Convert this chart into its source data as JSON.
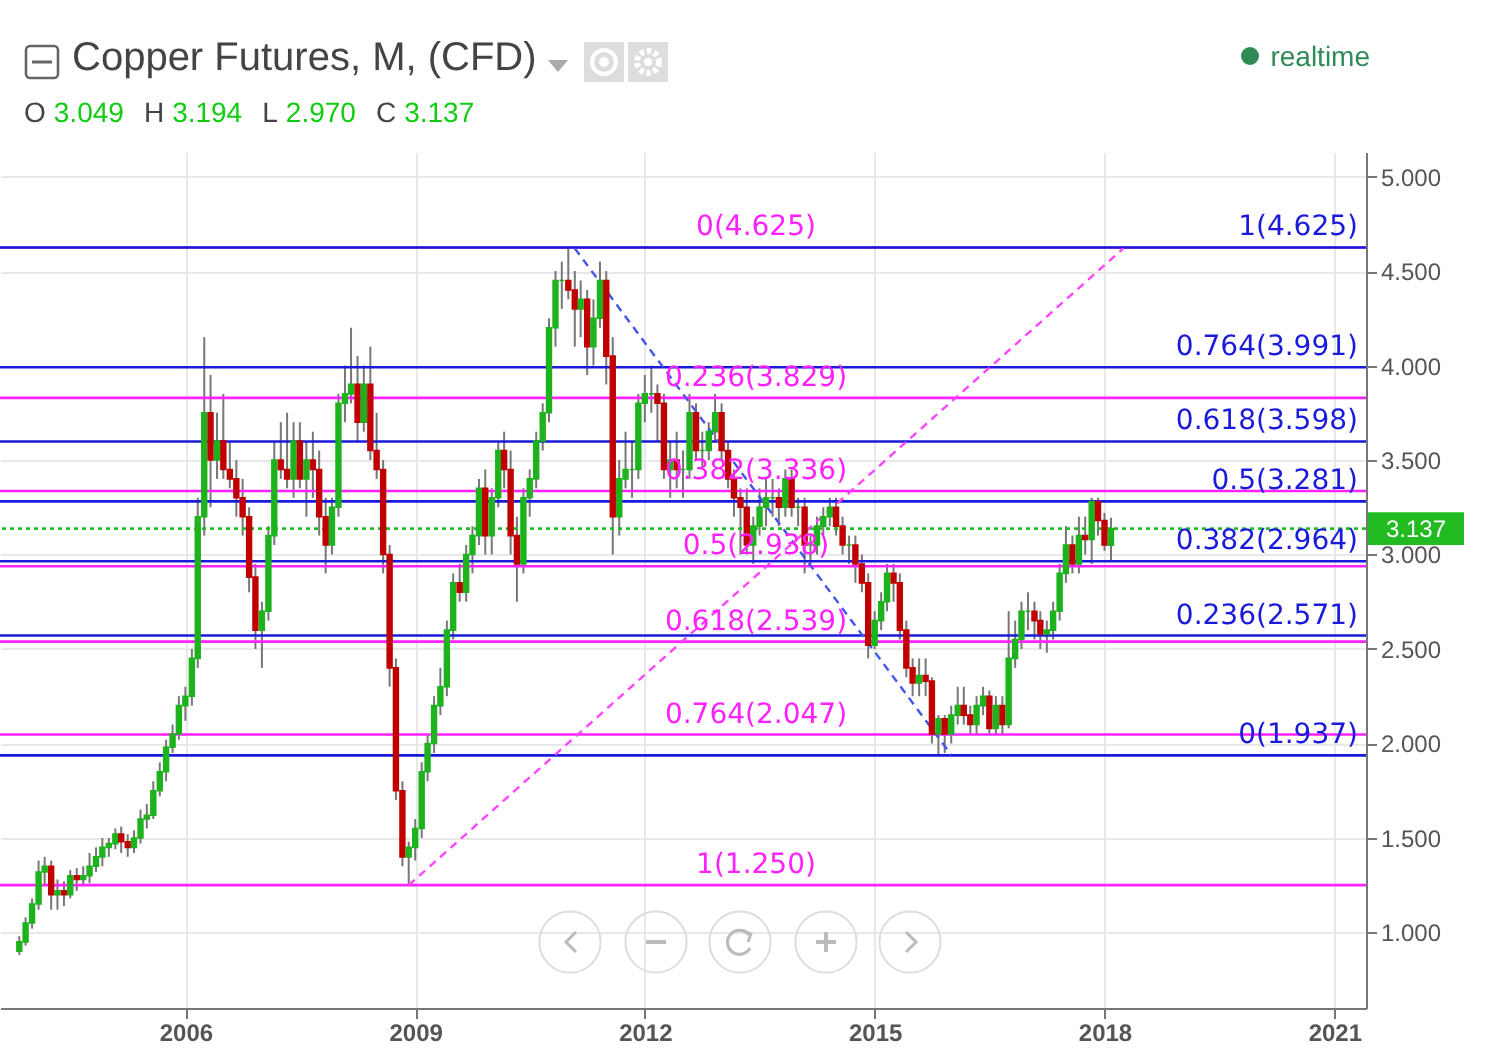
{
  "chart_data": {
    "type": "candlestick",
    "title": "Copper Futures, M, (CFD)",
    "annotations": [
      "O 3.049",
      "H 3.194",
      "L 2.970",
      "C 3.137",
      "realtime"
    ],
    "colors": [
      "#1db31d",
      "#1db31d",
      "#1db31d",
      "#1db31d",
      "#1db31d",
      "#c00000",
      "#1db31d",
      "#c00000",
      "#1db31d",
      "#c00000",
      "#1db31d",
      "#1db31d",
      "#1db31d",
      "#1db31d",
      "#1db31d",
      "#1db31d",
      "#c00000",
      "#c00000",
      "#1db31d",
      "#1db31d",
      "#1db31d",
      "#1db31d",
      "#1db31d",
      "#1db31d",
      "#1db31d",
      "#1db31d",
      "#1db31d",
      "#1db31d",
      "#1db31d",
      "#1db31d",
      "#c00000",
      "#1db31d",
      "#c00000",
      "#c00000",
      "#c00000",
      "#c00000",
      "#c00000",
      "#c00000",
      "#1db31d",
      "#1db31d",
      "#1db31d",
      "#c00000",
      "#c00000",
      "#1db31d",
      "#c00000",
      "#1db31d",
      "#c00000",
      "#c00000",
      "#c00000",
      "#1db31d",
      "#1db31d",
      "#1db31d",
      "#1db31d",
      "#c00000",
      "#1db31d",
      "#c00000",
      "#c00000",
      "#c00000",
      "#c00000",
      "#c00000",
      "#c00000",
      "#1db31d",
      "#1db31d",
      "#1db31d",
      "#1db31d",
      "#1db31d",
      "#1db31d",
      "#1db31d",
      "#1db31d",
      "#c00000",
      "#1db31d",
      "#1db31d",
      "#1db31d",
      "#c00000",
      "#1db31d",
      "#1db31d",
      "#c00000",
      "#c00000",
      "#c00000",
      "#1db31d",
      "#1db31d",
      "#1db31d",
      "#1db31d",
      "#1db31d",
      "#1db31d",
      "#1db31d",
      "#c00000",
      "#c00000",
      "#1db31d",
      "#c00000",
      "#1db31d",
      "#1db31d",
      "#c00000",
      "#c00000",
      "#1db31d",
      "#1db31d",
      "#1db31d",
      "#1db31d",
      "#1db31d",
      "#1db31d",
      "#c00000",
      "#c00000",
      "#1db31d",
      "#c00000",
      "#1db31d",
      "#1db31d",
      "#c00000",
      "#1db31d",
      "#1db31d",
      "#1db31d",
      "#c00000",
      "#c00000",
      "#c00000",
      "#c00000",
      "#c00000",
      "#1db31d",
      "#1db31d",
      "#1db31d",
      "#1db31d",
      "#c00000",
      "#1db31d",
      "#c00000",
      "#1db31d",
      "#c00000",
      "#1db31d",
      "#1db31d",
      "#1db31d",
      "#1db31d",
      "#c00000",
      "#c00000",
      "#1db31d",
      "#c00000",
      "#c00000",
      "#c00000",
      "#1db31d",
      "#1db31d",
      "#1db31d",
      "#c00000",
      "#c00000",
      "#c00000",
      "#c00000",
      "#1db31d",
      "#c00000",
      "#c00000",
      "#1db31d",
      "#c00000",
      "#1db31d",
      "#1db31d",
      "#c00000",
      "#c00000",
      "#1db31d",
      "#1db31d",
      "#c00000",
      "#1db31d",
      "#c00000",
      "#1db31d",
      "#1db31d",
      "#1db31d",
      "#1db31d",
      "#c00000",
      "#c00000",
      "#1db31d",
      "#1db31d",
      "#1db31d",
      "#1db31d",
      "#c00000",
      "#1db31d",
      "#c00000",
      "#1db31d",
      "#c00000",
      "#c00000",
      "#1db31d"
    ],
    "grid": true,
    "xlim": [
      "2003-08",
      "2021-06"
    ],
    "xticks": [
      "2006",
      "2009",
      "2012",
      "2015",
      "2018",
      "2021"
    ],
    "ylim": [
      0.6,
      5.13
    ],
    "yticks": [
      {
        "value": 1,
        "label": "1.000"
      },
      {
        "value": 1.5,
        "label": "1.500"
      },
      {
        "value": 2,
        "label": "2.000"
      },
      {
        "value": 2.5,
        "label": "2.500"
      },
      {
        "value": 3,
        "label": "3.000"
      },
      {
        "value": 3.5,
        "label": "3.500"
      },
      {
        "value": 4,
        "label": "4.000"
      },
      {
        "value": 4.5,
        "label": "4.500"
      },
      {
        "value": 5,
        "label": "5.000"
      }
    ],
    "x": [
      "2003-11",
      "2003-12",
      "2004-01",
      "2004-02",
      "2004-03",
      "2004-04",
      "2004-05",
      "2004-06",
      "2004-07",
      "2004-08",
      "2004-09",
      "2004-10",
      "2004-11",
      "2004-12",
      "2005-01",
      "2005-02",
      "2005-03",
      "2005-04",
      "2005-05",
      "2005-06",
      "2005-07",
      "2005-08",
      "2005-09",
      "2005-10",
      "2005-11",
      "2005-12",
      "2006-01",
      "2006-02",
      "2006-03",
      "2006-04",
      "2006-05",
      "2006-06",
      "2006-07",
      "2006-08",
      "2006-09",
      "2006-10",
      "2006-11",
      "2006-12",
      "2007-01",
      "2007-02",
      "2007-03",
      "2007-04",
      "2007-05",
      "2007-06",
      "2007-07",
      "2007-08",
      "2007-09",
      "2007-10",
      "2007-11",
      "2007-12",
      "2008-01",
      "2008-02",
      "2008-03",
      "2008-04",
      "2008-05",
      "2008-06",
      "2008-07",
      "2008-08",
      "2008-09",
      "2008-10",
      "2008-11",
      "2008-12",
      "2009-01",
      "2009-02",
      "2009-03",
      "2009-04",
      "2009-05",
      "2009-06",
      "2009-07",
      "2009-08",
      "2009-09",
      "2009-10",
      "2009-11",
      "2009-12",
      "2010-01",
      "2010-02",
      "2010-03",
      "2010-04",
      "2010-05",
      "2010-06",
      "2010-07",
      "2010-08",
      "2010-09",
      "2010-10",
      "2010-11",
      "2010-12",
      "2011-01",
      "2011-02",
      "2011-03",
      "2011-04",
      "2011-05",
      "2011-06",
      "2011-07",
      "2011-08",
      "2011-09",
      "2011-10",
      "2011-11",
      "2011-12",
      "2012-01",
      "2012-02",
      "2012-03",
      "2012-04",
      "2012-05",
      "2012-06",
      "2012-07",
      "2012-08",
      "2012-09",
      "2012-10",
      "2012-11",
      "2012-12",
      "2013-01",
      "2013-02",
      "2013-03",
      "2013-04",
      "2013-05",
      "2013-06",
      "2013-07",
      "2013-08",
      "2013-09",
      "2013-10",
      "2013-11",
      "2013-12",
      "2014-01",
      "2014-02",
      "2014-03",
      "2014-04",
      "2014-05",
      "2014-06",
      "2014-07",
      "2014-08",
      "2014-09",
      "2014-10",
      "2014-11",
      "2014-12",
      "2015-01",
      "2015-02",
      "2015-03",
      "2015-04",
      "2015-05",
      "2015-06",
      "2015-07",
      "2015-08",
      "2015-09",
      "2015-10",
      "2015-11",
      "2015-12",
      "2016-01",
      "2016-02",
      "2016-03",
      "2016-04",
      "2016-05",
      "2016-06",
      "2016-07",
      "2016-08",
      "2016-09",
      "2016-10",
      "2016-11",
      "2016-12",
      "2017-01",
      "2017-02",
      "2017-03",
      "2017-04",
      "2017-05",
      "2017-06",
      "2017-07",
      "2017-08",
      "2017-09",
      "2017-10",
      "2017-11",
      "2017-12",
      "2018-01",
      "2018-02"
    ],
    "ohlc": [
      [
        0.9,
        0.98,
        0.88,
        0.95
      ],
      [
        0.95,
        1.08,
        0.93,
        1.05
      ],
      [
        1.05,
        1.18,
        1.02,
        1.15
      ],
      [
        1.15,
        1.38,
        1.12,
        1.32
      ],
      [
        1.32,
        1.4,
        1.25,
        1.35
      ],
      [
        1.35,
        1.38,
        1.12,
        1.2
      ],
      [
        1.2,
        1.28,
        1.12,
        1.22
      ],
      [
        1.22,
        1.27,
        1.14,
        1.2
      ],
      [
        1.2,
        1.33,
        1.18,
        1.3
      ],
      [
        1.3,
        1.34,
        1.22,
        1.28
      ],
      [
        1.28,
        1.35,
        1.25,
        1.3
      ],
      [
        1.3,
        1.42,
        1.26,
        1.35
      ],
      [
        1.35,
        1.45,
        1.32,
        1.4
      ],
      [
        1.4,
        1.5,
        1.35,
        1.45
      ],
      [
        1.45,
        1.5,
        1.4,
        1.47
      ],
      [
        1.47,
        1.55,
        1.44,
        1.52
      ],
      [
        1.52,
        1.56,
        1.42,
        1.48
      ],
      [
        1.48,
        1.52,
        1.4,
        1.45
      ],
      [
        1.45,
        1.54,
        1.42,
        1.5
      ],
      [
        1.5,
        1.65,
        1.47,
        1.6
      ],
      [
        1.6,
        1.68,
        1.55,
        1.62
      ],
      [
        1.62,
        1.8,
        1.6,
        1.75
      ],
      [
        1.75,
        1.9,
        1.72,
        1.85
      ],
      [
        1.85,
        2.02,
        1.8,
        1.98
      ],
      [
        1.98,
        2.1,
        1.95,
        2.05
      ],
      [
        2.05,
        2.25,
        2.02,
        2.2
      ],
      [
        2.2,
        2.3,
        2.12,
        2.25
      ],
      [
        2.25,
        2.5,
        2.2,
        2.45
      ],
      [
        2.45,
        3.3,
        2.4,
        3.2
      ],
      [
        3.2,
        4.15,
        3.1,
        3.75
      ],
      [
        3.75,
        3.95,
        3.25,
        3.5
      ],
      [
        3.5,
        3.75,
        3.4,
        3.6
      ],
      [
        3.6,
        3.85,
        3.4,
        3.45
      ],
      [
        3.45,
        3.6,
        3.35,
        3.4
      ],
      [
        3.4,
        3.5,
        3.2,
        3.3
      ],
      [
        3.3,
        3.4,
        3.1,
        3.2
      ],
      [
        3.2,
        3.25,
        2.8,
        2.88
      ],
      [
        2.88,
        2.95,
        2.5,
        2.6
      ],
      [
        2.6,
        2.75,
        2.4,
        2.7
      ],
      [
        2.7,
        3.15,
        2.65,
        3.1
      ],
      [
        3.1,
        3.6,
        3.05,
        3.5
      ],
      [
        3.5,
        3.7,
        3.4,
        3.45
      ],
      [
        3.45,
        3.75,
        3.35,
        3.4
      ],
      [
        3.4,
        3.7,
        3.3,
        3.6
      ],
      [
        3.6,
        3.7,
        3.35,
        3.4
      ],
      [
        3.4,
        3.6,
        3.2,
        3.5
      ],
      [
        3.5,
        3.65,
        3.3,
        3.45
      ],
      [
        3.45,
        3.55,
        3.1,
        3.2
      ],
      [
        3.2,
        3.3,
        2.9,
        3.05
      ],
      [
        3.05,
        3.3,
        3.0,
        3.25
      ],
      [
        3.25,
        3.85,
        3.2,
        3.8
      ],
      [
        3.8,
        4.0,
        3.7,
        3.85
      ],
      [
        3.85,
        4.2,
        3.8,
        3.9
      ],
      [
        3.9,
        4.05,
        3.6,
        3.7
      ],
      [
        3.7,
        4.0,
        3.65,
        3.9
      ],
      [
        3.9,
        4.1,
        3.5,
        3.55
      ],
      [
        3.55,
        3.75,
        3.4,
        3.45
      ],
      [
        3.45,
        3.5,
        2.9,
        3.0
      ],
      [
        3.0,
        3.05,
        2.3,
        2.4
      ],
      [
        2.4,
        2.45,
        1.7,
        1.75
      ],
      [
        1.75,
        1.8,
        1.35,
        1.4
      ],
      [
        1.4,
        1.48,
        1.25,
        1.45
      ],
      [
        1.45,
        1.6,
        1.38,
        1.55
      ],
      [
        1.55,
        1.9,
        1.5,
        1.85
      ],
      [
        1.85,
        2.05,
        1.8,
        2.0
      ],
      [
        2.0,
        2.25,
        1.95,
        2.2
      ],
      [
        2.2,
        2.4,
        2.15,
        2.3
      ],
      [
        2.3,
        2.65,
        2.25,
        2.6
      ],
      [
        2.6,
        2.9,
        2.55,
        2.85
      ],
      [
        2.85,
        2.95,
        2.75,
        2.8
      ],
      [
        2.8,
        3.05,
        2.75,
        3.0
      ],
      [
        3.0,
        3.15,
        2.9,
        3.1
      ],
      [
        3.1,
        3.4,
        3.05,
        3.35
      ],
      [
        3.35,
        3.45,
        3.0,
        3.1
      ],
      [
        3.1,
        3.35,
        3.0,
        3.3
      ],
      [
        3.3,
        3.6,
        3.25,
        3.55
      ],
      [
        3.55,
        3.65,
        3.35,
        3.45
      ],
      [
        3.45,
        3.55,
        3.0,
        3.1
      ],
      [
        3.1,
        3.2,
        2.75,
        2.95
      ],
      [
        2.95,
        3.35,
        2.9,
        3.3
      ],
      [
        3.3,
        3.45,
        3.2,
        3.4
      ],
      [
        3.4,
        3.65,
        3.35,
        3.6
      ],
      [
        3.6,
        3.8,
        3.55,
        3.75
      ],
      [
        3.75,
        4.25,
        3.7,
        4.2
      ],
      [
        4.2,
        4.5,
        4.1,
        4.45
      ],
      [
        4.45,
        4.55,
        4.3,
        4.45
      ],
      [
        4.45,
        4.625,
        4.35,
        4.4
      ],
      [
        4.4,
        4.5,
        4.1,
        4.3
      ],
      [
        4.3,
        4.45,
        4.15,
        4.35
      ],
      [
        4.35,
        4.4,
        3.95,
        4.1
      ],
      [
        4.1,
        4.35,
        4.0,
        4.25
      ],
      [
        4.25,
        4.55,
        4.2,
        4.45
      ],
      [
        4.45,
        4.5,
        3.9,
        4.05
      ],
      [
        4.05,
        4.15,
        3.0,
        3.2
      ],
      [
        3.2,
        3.5,
        3.1,
        3.4
      ],
      [
        3.4,
        3.65,
        3.35,
        3.45
      ],
      [
        3.45,
        3.6,
        3.3,
        3.45
      ],
      [
        3.45,
        3.85,
        3.4,
        3.8
      ],
      [
        3.8,
        3.95,
        3.7,
        3.85
      ],
      [
        3.85,
        4.0,
        3.75,
        3.85
      ],
      [
        3.85,
        3.9,
        3.6,
        3.8
      ],
      [
        3.8,
        3.85,
        3.4,
        3.45
      ],
      [
        3.45,
        3.6,
        3.3,
        3.5
      ],
      [
        3.5,
        3.65,
        3.35,
        3.45
      ],
      [
        3.45,
        3.55,
        3.3,
        3.45
      ],
      [
        3.45,
        3.85,
        3.4,
        3.75
      ],
      [
        3.75,
        3.8,
        3.5,
        3.55
      ],
      [
        3.55,
        3.65,
        3.45,
        3.55
      ],
      [
        3.55,
        3.7,
        3.5,
        3.65
      ],
      [
        3.65,
        3.85,
        3.6,
        3.75
      ],
      [
        3.75,
        3.8,
        3.5,
        3.55
      ],
      [
        3.55,
        3.6,
        3.35,
        3.4
      ],
      [
        3.4,
        3.45,
        3.2,
        3.3
      ],
      [
        3.3,
        3.35,
        3.0,
        3.25
      ],
      [
        3.25,
        3.35,
        3.0,
        3.05
      ],
      [
        3.05,
        3.2,
        2.95,
        3.15
      ],
      [
        3.15,
        3.35,
        3.1,
        3.25
      ],
      [
        3.25,
        3.4,
        3.15,
        3.3
      ],
      [
        3.3,
        3.4,
        3.2,
        3.3
      ],
      [
        3.3,
        3.35,
        3.15,
        3.25
      ],
      [
        3.25,
        3.45,
        3.2,
        3.4
      ],
      [
        3.4,
        3.45,
        3.2,
        3.25
      ],
      [
        3.25,
        3.3,
        3.15,
        3.25
      ],
      [
        3.25,
        3.3,
        2.9,
        3.05
      ],
      [
        3.05,
        3.1,
        2.95,
        3.05
      ],
      [
        3.05,
        3.2,
        3.0,
        3.15
      ],
      [
        3.15,
        3.25,
        3.1,
        3.2
      ],
      [
        3.2,
        3.3,
        3.15,
        3.25
      ],
      [
        3.25,
        3.3,
        3.1,
        3.15
      ],
      [
        3.15,
        3.2,
        3.0,
        3.05
      ],
      [
        3.05,
        3.1,
        2.95,
        3.05
      ],
      [
        3.05,
        3.1,
        2.85,
        2.95
      ],
      [
        2.95,
        3.0,
        2.8,
        2.85
      ],
      [
        2.85,
        2.9,
        2.45,
        2.52
      ],
      [
        2.52,
        2.7,
        2.5,
        2.65
      ],
      [
        2.65,
        2.8,
        2.6,
        2.75
      ],
      [
        2.75,
        2.95,
        2.7,
        2.9
      ],
      [
        2.9,
        2.95,
        2.75,
        2.85
      ],
      [
        2.85,
        2.9,
        2.55,
        2.6
      ],
      [
        2.6,
        2.65,
        2.35,
        2.4
      ],
      [
        2.4,
        2.45,
        2.25,
        2.32
      ],
      [
        2.32,
        2.45,
        2.25,
        2.36
      ],
      [
        2.36,
        2.45,
        2.25,
        2.33
      ],
      [
        2.33,
        2.35,
        2.0,
        2.05
      ],
      [
        2.05,
        2.15,
        1.94,
        2.13
      ],
      [
        2.13,
        2.15,
        1.95,
        2.05
      ],
      [
        2.05,
        2.2,
        2.0,
        2.15
      ],
      [
        2.15,
        2.3,
        2.1,
        2.2
      ],
      [
        2.2,
        2.3,
        2.1,
        2.15
      ],
      [
        2.15,
        2.2,
        2.05,
        2.1
      ],
      [
        2.1,
        2.25,
        2.05,
        2.2
      ],
      [
        2.2,
        2.3,
        2.15,
        2.25
      ],
      [
        2.25,
        2.28,
        2.05,
        2.08
      ],
      [
        2.08,
        2.25,
        2.05,
        2.2
      ],
      [
        2.2,
        2.25,
        2.05,
        2.1
      ],
      [
        2.1,
        2.7,
        2.08,
        2.45
      ],
      [
        2.45,
        2.65,
        2.4,
        2.55
      ],
      [
        2.55,
        2.75,
        2.5,
        2.7
      ],
      [
        2.7,
        2.8,
        2.6,
        2.7
      ],
      [
        2.7,
        2.75,
        2.55,
        2.65
      ],
      [
        2.65,
        2.7,
        2.5,
        2.58
      ],
      [
        2.58,
        2.65,
        2.48,
        2.6
      ],
      [
        2.6,
        2.75,
        2.55,
        2.7
      ],
      [
        2.7,
        2.95,
        2.65,
        2.9
      ],
      [
        2.9,
        3.15,
        2.85,
        3.05
      ],
      [
        3.05,
        3.1,
        2.9,
        2.95
      ],
      [
        2.95,
        3.2,
        2.9,
        3.1
      ],
      [
        3.1,
        3.2,
        3.0,
        3.08
      ],
      [
        3.08,
        3.3,
        2.95,
        3.28
      ],
      [
        3.28,
        3.3,
        3.1,
        3.18
      ],
      [
        3.18,
        3.22,
        3.02,
        3.05
      ],
      [
        3.049,
        3.194,
        2.97,
        3.137
      ]
    ],
    "series": [
      {
        "type": "line",
        "color": "#ff44ff",
        "line_style": "dashed",
        "x": [
          "2008-12",
          "2018-04"
        ],
        "values": [
          1.25,
          4.62
        ]
      },
      {
        "type": "line",
        "color": "#4455ee",
        "line_style": "dashed",
        "x": [
          "2011-02",
          "2016-01"
        ],
        "values": [
          4.62,
          1.94
        ]
      }
    ],
    "ref_lines": [
      {
        "axis": "y",
        "value": 4.625,
        "label": "0(4.625)",
        "color": "#ff22ff"
      },
      {
        "axis": "y",
        "value": 3.829,
        "label": "0.236(3.829)",
        "color": "#ff22ff"
      },
      {
        "axis": "y",
        "value": 3.336,
        "label": "0.382(3.336)",
        "color": "#ff22ff"
      },
      {
        "axis": "y",
        "value": 2.938,
        "label": "0.5(2.938)",
        "color": "#ff22ff"
      },
      {
        "axis": "y",
        "value": 2.539,
        "label": "0.618(2.539)",
        "color": "#ff22ff"
      },
      {
        "axis": "y",
        "value": 2.047,
        "label": "0.764(2.047)",
        "color": "#ff22ff"
      },
      {
        "axis": "y",
        "value": 1.25,
        "label": "1(1.250)",
        "color": "#ff22ff"
      },
      {
        "axis": "y",
        "value": 4.625,
        "label": "1(4.625)",
        "color": "#1a1add"
      },
      {
        "axis": "y",
        "value": 3.991,
        "label": "0.764(3.991)",
        "color": "#1a1add"
      },
      {
        "axis": "y",
        "value": 3.598,
        "label": "0.618(3.598)",
        "color": "#1a1add"
      },
      {
        "axis": "y",
        "value": 3.281,
        "label": "0.5(3.281)",
        "color": "#1a1add"
      },
      {
        "axis": "y",
        "value": 2.964,
        "label": "0.382(2.964)",
        "color": "#1a1add"
      },
      {
        "axis": "y",
        "value": 2.571,
        "label": "0.236(2.571)",
        "color": "#1a1add"
      },
      {
        "axis": "y",
        "value": 1.937,
        "label": "0(1.937)",
        "color": "#1a1add"
      },
      {
        "axis": "y",
        "value": 3.137,
        "label": "3.137",
        "color": "#22bb22",
        "line_style": "dotted"
      }
    ]
  }
}
